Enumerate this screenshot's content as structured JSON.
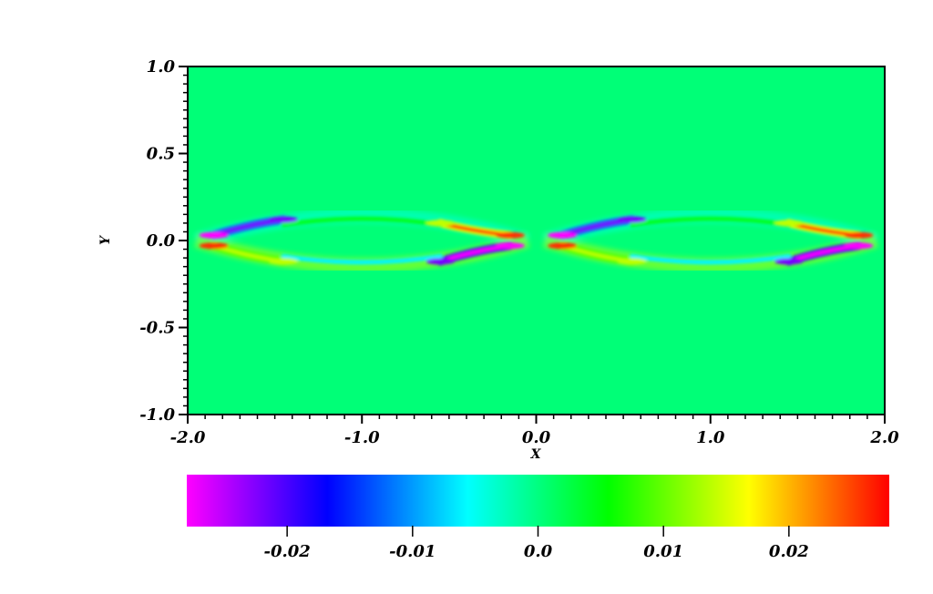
{
  "chart_data": {
    "type": "heatmap",
    "title": "",
    "xlabel": "X",
    "ylabel": "Y",
    "xlim": [
      -2.0,
      2.0
    ],
    "ylim": [
      -1.0,
      1.0
    ],
    "x_ticks": [
      "-2.0",
      "-1.0",
      "0.0",
      "1.0",
      "2.0"
    ],
    "y_ticks": [
      "1.0",
      "0.5",
      "0.0",
      "-0.5",
      "-1.0"
    ],
    "colorbar": {
      "range": [
        -0.028,
        0.028
      ],
      "ticks": [
        "-0.02",
        "-0.01",
        "0.0",
        "0.01",
        "0.02"
      ],
      "colormap": [
        "#ff00ff",
        "#0000ff",
        "#00ffff",
        "#00ff00",
        "#ffff00",
        "#ff0000"
      ]
    },
    "field": {
      "background_value": 0.0,
      "features": [
        {
          "x": -1.85,
          "y": 0.03,
          "value": -0.028
        },
        {
          "x": -1.85,
          "y": -0.03,
          "value": 0.026
        },
        {
          "x": -1.45,
          "y": 0.12,
          "value": -0.022
        },
        {
          "x": -1.45,
          "y": -0.12,
          "value": 0.014
        },
        {
          "x": -0.55,
          "y": 0.1,
          "value": 0.014
        },
        {
          "x": -0.55,
          "y": -0.12,
          "value": -0.022
        },
        {
          "x": -0.15,
          "y": 0.03,
          "value": 0.026
        },
        {
          "x": -0.15,
          "y": -0.03,
          "value": -0.028
        },
        {
          "x": 0.15,
          "y": 0.03,
          "value": -0.028
        },
        {
          "x": 0.15,
          "y": -0.03,
          "value": 0.026
        },
        {
          "x": 0.55,
          "y": 0.12,
          "value": -0.022
        },
        {
          "x": 0.55,
          "y": -0.12,
          "value": 0.014
        },
        {
          "x": 1.45,
          "y": 0.1,
          "value": 0.014
        },
        {
          "x": 1.45,
          "y": -0.12,
          "value": -0.022
        },
        {
          "x": 1.85,
          "y": 0.03,
          "value": 0.026
        },
        {
          "x": 1.85,
          "y": -0.03,
          "value": -0.028
        }
      ]
    }
  }
}
